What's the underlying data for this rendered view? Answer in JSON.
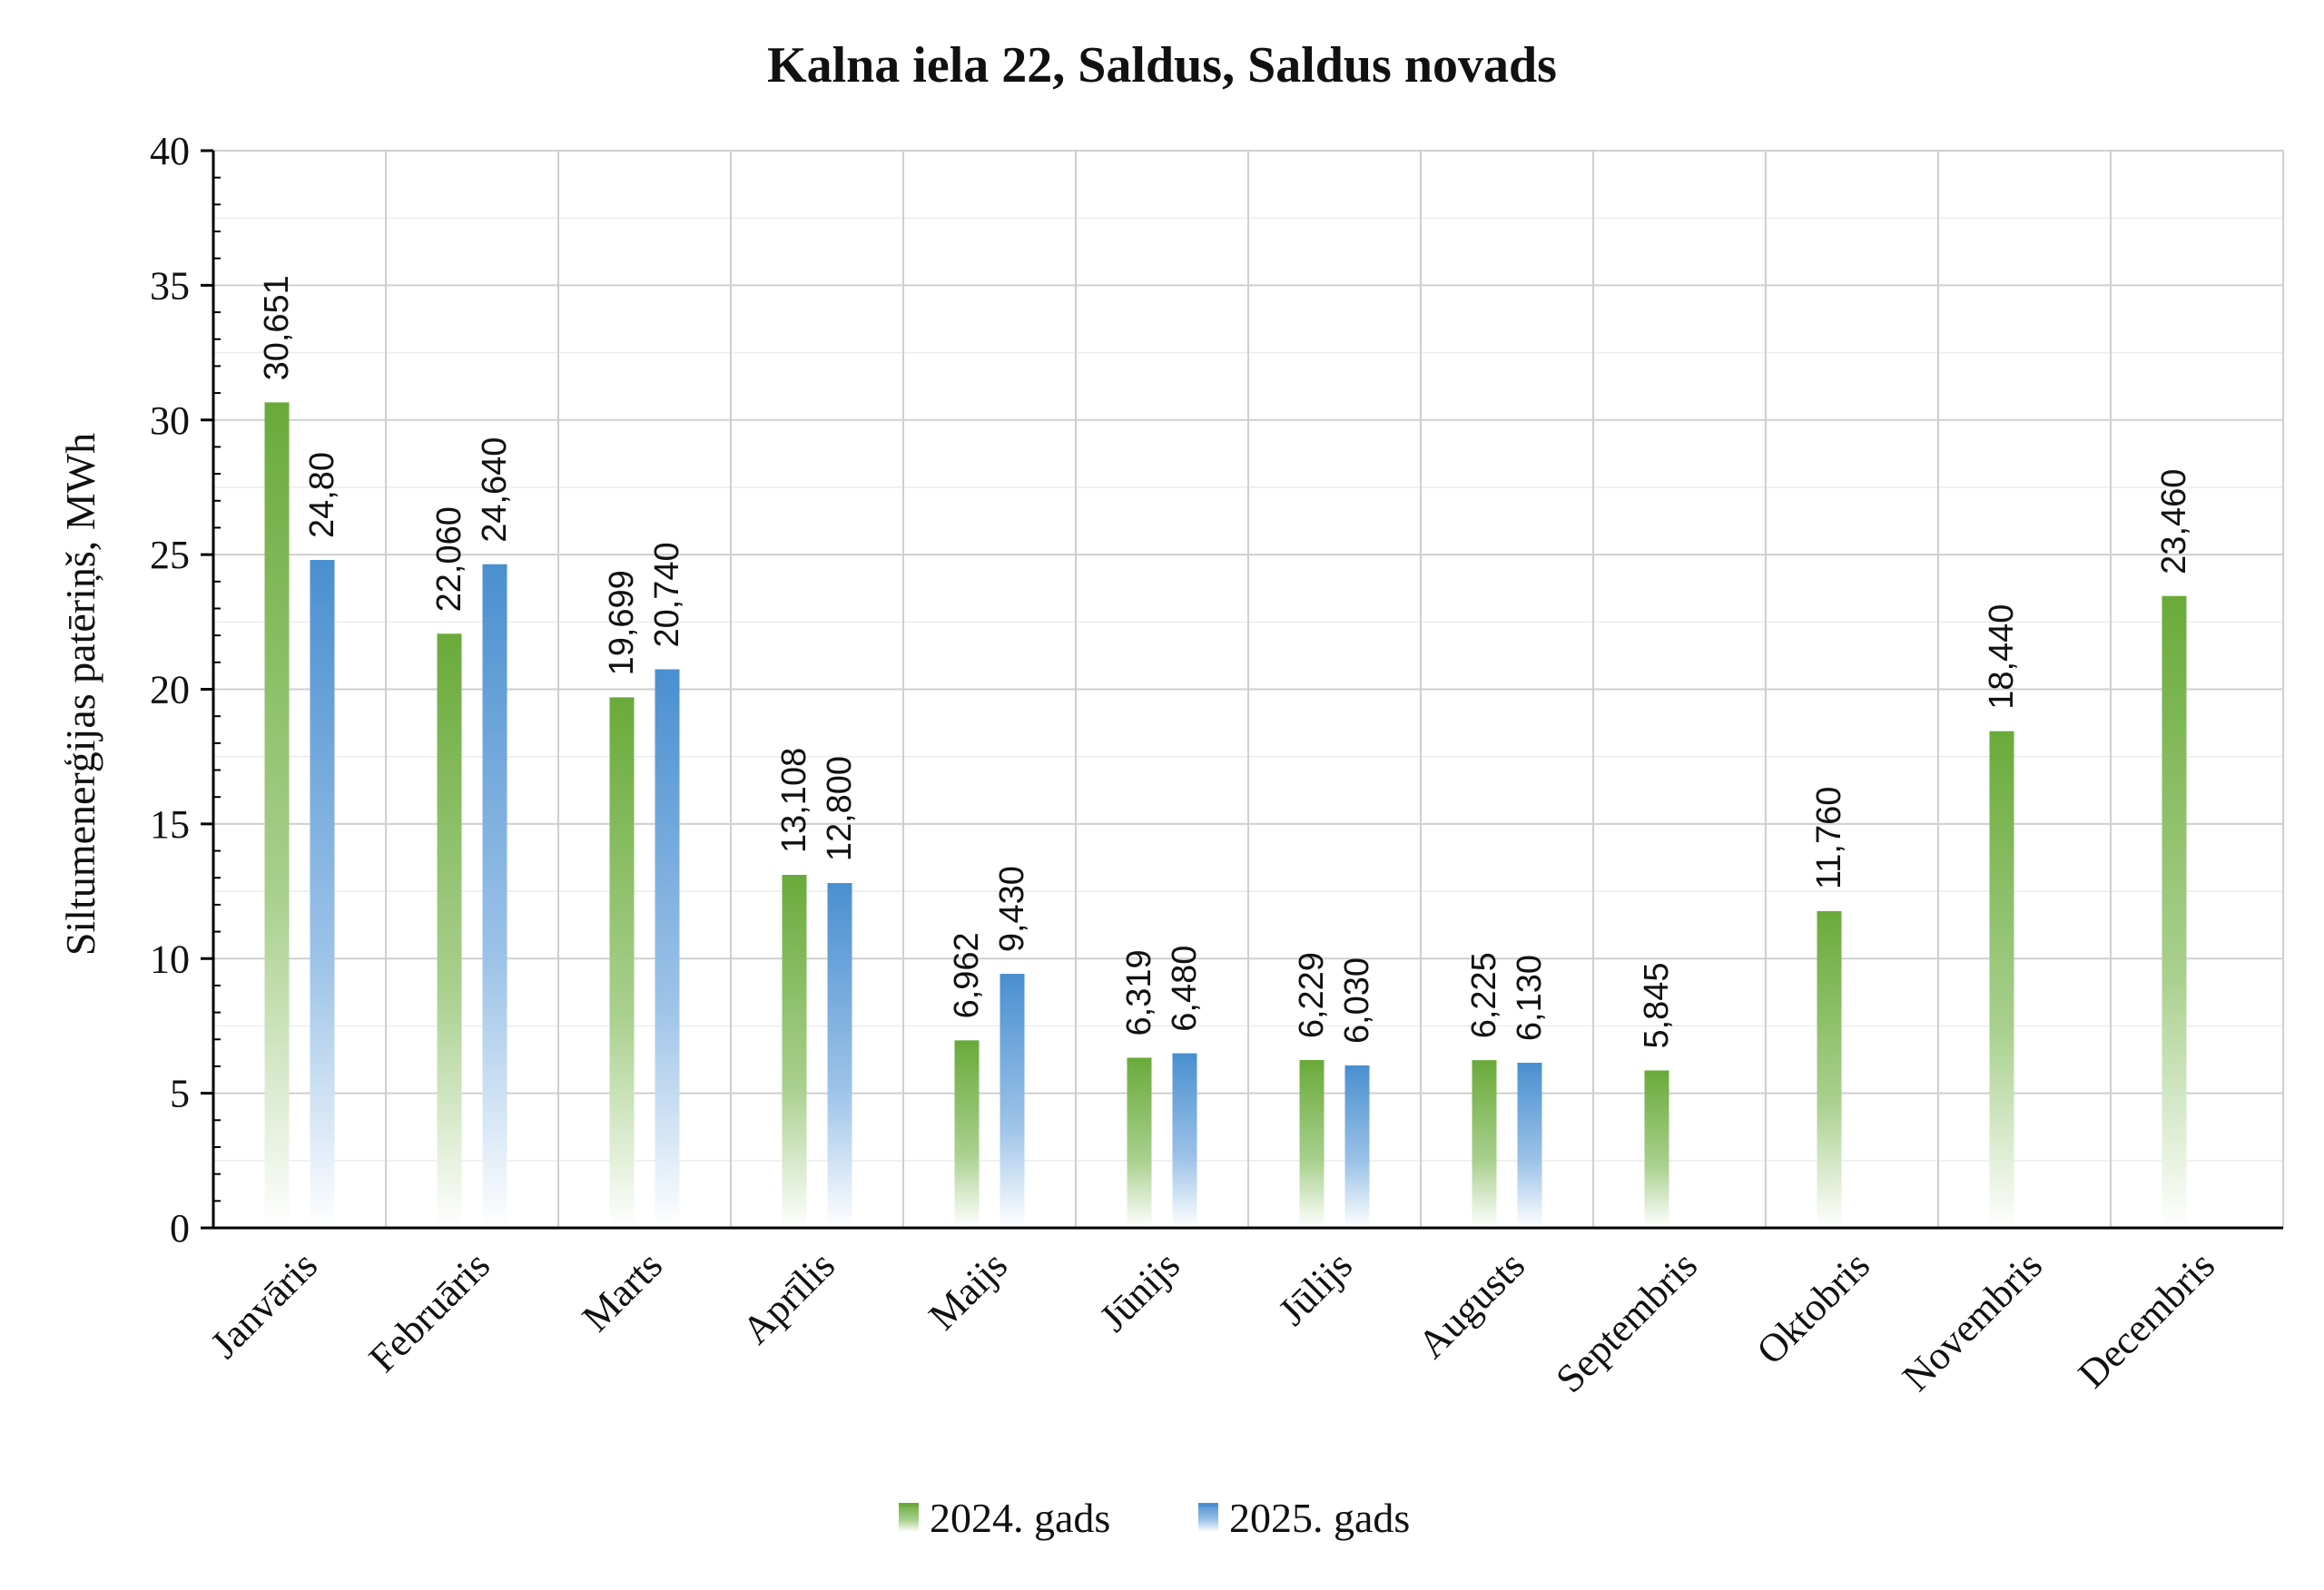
{
  "chart_data": {
    "type": "bar",
    "title": "Kalna iela 22, Saldus, Saldus novads",
    "xlabel": "",
    "ylabel": "Siltumenerģijas patēriņš, MWh",
    "ylim": [
      0,
      40
    ],
    "yticks": [
      0,
      5,
      10,
      15,
      20,
      25,
      30,
      35,
      40
    ],
    "grid": true,
    "legend_position": "bottom",
    "categories": [
      "Janvāris",
      "Februāris",
      "Marts",
      "Aprīlis",
      "Maijs",
      "Jūnijs",
      "Jūlijs",
      "Augusts",
      "Septembris",
      "Oktobris",
      "Novembris",
      "Decembris"
    ],
    "series": [
      {
        "name": "2024. gads",
        "color": "#6aaa3a",
        "values": [
          30.651,
          22.06,
          19.699,
          13.108,
          6.962,
          6.319,
          6.229,
          6.225,
          5.845,
          11.76,
          18.44,
          23.46
        ],
        "labels": [
          "30,651",
          "22,060",
          "19,699",
          "13,108",
          "6,962",
          "6,319",
          "6,229",
          "6,225",
          "5,845",
          "11,760",
          "18,440",
          "23,460"
        ]
      },
      {
        "name": "2025. gads",
        "color": "#4a8fd0",
        "values": [
          24.8,
          24.64,
          20.74,
          12.8,
          9.43,
          6.48,
          6.03,
          6.13,
          null,
          null,
          null,
          null
        ],
        "labels": [
          "24,80",
          "24,640",
          "20,740",
          "12,800",
          "9,430",
          "6,480",
          "6,030",
          "6,130",
          null,
          null,
          null,
          null
        ]
      }
    ]
  }
}
